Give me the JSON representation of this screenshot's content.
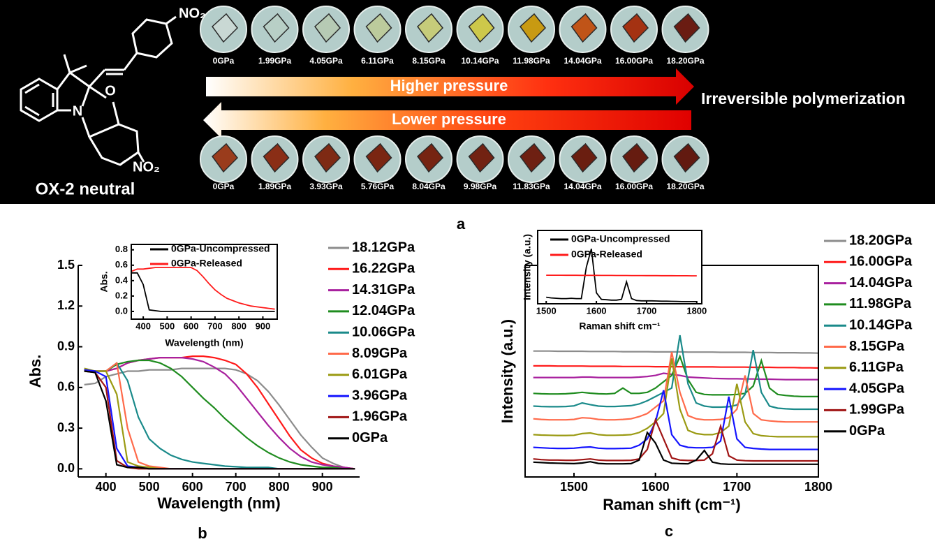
{
  "panel_a": {
    "label": "a",
    "compound": "OX-2 neutral",
    "nitro": "NO₂",
    "atom_n": "N",
    "atom_o": "O",
    "compression": [
      "0GPa",
      "1.99GPa",
      "4.05GPa",
      "6.11GPa",
      "8.15GPa",
      "10.14GPa",
      "11.98GPa",
      "14.04GPa",
      "16.00GPa",
      "18.20GPa"
    ],
    "decompression": [
      "0GPa",
      "1.89GPa",
      "3.93GPa",
      "5.76GPa",
      "8.04GPa",
      "9.98GPa",
      "11.83GPa",
      "14.04GPa",
      "16.00GPa",
      "18.20GPa"
    ],
    "higher": "Higher pressure",
    "lower": "Lower pressure",
    "result": "Irreversible polymerization"
  },
  "chart_data": [
    {
      "type": "line",
      "panel_label": "b",
      "xlabel": "Wavelength (nm)",
      "ylabel": "Abs.",
      "xlim": [
        336,
        986
      ],
      "ylim": [
        -0.06,
        1.5
      ],
      "xticks": [
        400,
        500,
        600,
        700,
        800,
        900
      ],
      "yticks": [
        {
          "value": 0,
          "label": "0.0"
        },
        0.3,
        0.6,
        0.9,
        1.2,
        1.5
      ],
      "x": [
        350,
        375,
        400,
        425,
        450,
        475,
        500,
        525,
        550,
        575,
        600,
        625,
        650,
        675,
        700,
        725,
        750,
        775,
        800,
        825,
        850,
        875,
        900,
        925,
        950,
        975
      ],
      "series": [
        {
          "name": "18.12GPa",
          "color": "#8c8c8c",
          "values": [
            0.62,
            0.63,
            0.68,
            0.7,
            0.72,
            0.72,
            0.73,
            0.73,
            0.73,
            0.74,
            0.74,
            0.74,
            0.74,
            0.74,
            0.73,
            0.7,
            0.65,
            0.57,
            0.47,
            0.36,
            0.25,
            0.16,
            0.08,
            0.04,
            0.01,
            0
          ]
        },
        {
          "name": "16.22GPa",
          "color": "#ff1a1a",
          "values": [
            0.73,
            0.72,
            0.72,
            0.74,
            0.78,
            0.8,
            0.81,
            0.82,
            0.82,
            0.82,
            0.83,
            0.83,
            0.82,
            0.8,
            0.77,
            0.7,
            0.6,
            0.48,
            0.36,
            0.24,
            0.14,
            0.08,
            0.04,
            0.02,
            0.01,
            0
          ]
        },
        {
          "name": "14.31GPa",
          "color": "#a8209e",
          "values": [
            0.73,
            0.72,
            0.72,
            0.74,
            0.78,
            0.8,
            0.81,
            0.82,
            0.82,
            0.82,
            0.81,
            0.79,
            0.75,
            0.7,
            0.62,
            0.52,
            0.42,
            0.32,
            0.23,
            0.15,
            0.09,
            0.05,
            0.03,
            0.02,
            0.01,
            0
          ]
        },
        {
          "name": "12.04GPa",
          "color": "#1f8c1f",
          "values": [
            0.73,
            0.72,
            0.72,
            0.77,
            0.79,
            0.8,
            0.8,
            0.78,
            0.74,
            0.68,
            0.6,
            0.52,
            0.45,
            0.37,
            0.3,
            0.23,
            0.17,
            0.12,
            0.08,
            0.05,
            0.03,
            0.02,
            0.01,
            0.01,
            0,
            0
          ]
        },
        {
          "name": "10.06GPa",
          "color": "#1a8a8a",
          "values": [
            0.72,
            0.72,
            0.72,
            0.78,
            0.65,
            0.38,
            0.22,
            0.15,
            0.1,
            0.07,
            0.05,
            0.04,
            0.03,
            0.02,
            0.015,
            0.01,
            0.01,
            0.01,
            0,
            0,
            0,
            0,
            0,
            0,
            0,
            0
          ]
        },
        {
          "name": "8.09GPa",
          "color": "#ff6a4a",
          "values": [
            0.73,
            0.72,
            0.72,
            0.78,
            0.3,
            0.05,
            0.02,
            0.01,
            0,
            0,
            0,
            0,
            0,
            0,
            0,
            0,
            0,
            0,
            0,
            0,
            0,
            0,
            0,
            0,
            0,
            0
          ]
        },
        {
          "name": "6.01GPa",
          "color": "#9a9a12",
          "values": [
            0.74,
            0.72,
            0.72,
            0.55,
            0.05,
            0.02,
            0.01,
            0,
            0,
            0,
            0,
            0,
            0,
            0,
            0,
            0,
            0,
            0,
            0,
            0,
            0,
            0,
            0,
            0,
            0,
            0
          ]
        },
        {
          "name": "3.96GPa",
          "color": "#1414ff",
          "values": [
            0.73,
            0.72,
            0.68,
            0.15,
            0.02,
            0.01,
            0,
            0,
            0,
            0,
            0,
            0,
            0,
            0,
            0,
            0,
            0,
            0,
            0,
            0,
            0,
            0,
            0,
            0,
            0,
            0
          ]
        },
        {
          "name": "1.96GPa",
          "color": "#a01414",
          "values": [
            0.72,
            0.71,
            0.6,
            0.06,
            0.01,
            0,
            0,
            0,
            0,
            0,
            0,
            0,
            0,
            0,
            0,
            0,
            0,
            0,
            0,
            0,
            0,
            0,
            0,
            0,
            0,
            0
          ]
        },
        {
          "name": "0GPa",
          "color": "#000000",
          "values": [
            0.72,
            0.71,
            0.5,
            0.03,
            0.01,
            0.01,
            0,
            0,
            0,
            0,
            0,
            0,
            0,
            0,
            0,
            0,
            0,
            0,
            0,
            0,
            0,
            0,
            0,
            0,
            0,
            0
          ]
        }
      ]
    },
    {
      "type": "line",
      "xlabel": "Wavelength (nm)",
      "ylabel": "Abs.",
      "xlim": [
        350,
        960
      ],
      "ylim": [
        -0.1,
        0.87
      ],
      "xticks": [
        400,
        500,
        600,
        700,
        800,
        900
      ],
      "yticks": [
        {
          "value": 0,
          "label": "0.0"
        },
        0.2,
        0.4,
        0.6,
        0.8
      ],
      "x": [
        350,
        375,
        400,
        425,
        450,
        475,
        500,
        525,
        550,
        575,
        600,
        625,
        650,
        675,
        700,
        725,
        750,
        775,
        800,
        825,
        850,
        875,
        900,
        925,
        950
      ],
      "series": [
        {
          "name": "0GPa-Uncompressed",
          "color": "#000000",
          "values": [
            0.5,
            0.5,
            0.35,
            0.02,
            0.01,
            0,
            0,
            0,
            0,
            0,
            0,
            0,
            0,
            0,
            0,
            0,
            0,
            0,
            0,
            0,
            0,
            0,
            0,
            0,
            0
          ]
        },
        {
          "name": "0GPa-Released",
          "color": "#ff1a1a",
          "values": [
            0.52,
            0.55,
            0.55,
            0.56,
            0.57,
            0.57,
            0.57,
            0.57,
            0.57,
            0.57,
            0.57,
            0.53,
            0.45,
            0.36,
            0.28,
            0.22,
            0.17,
            0.14,
            0.11,
            0.09,
            0.07,
            0.06,
            0.05,
            0.04,
            0.03
          ]
        }
      ]
    },
    {
      "type": "line",
      "panel_label": "c",
      "xlabel": "Raman shift (cm⁻¹)",
      "ylabel": "Intensity (a.u.)",
      "xlim": [
        1440,
        1800
      ],
      "ylim": [
        0,
        10
      ],
      "xticks": [
        1500,
        1600,
        1700,
        1800
      ],
      "x": [
        1450,
        1460,
        1470,
        1480,
        1490,
        1500,
        1510,
        1520,
        1530,
        1540,
        1550,
        1560,
        1570,
        1580,
        1590,
        1600,
        1610,
        1620,
        1630,
        1640,
        1650,
        1660,
        1670,
        1680,
        1690,
        1700,
        1710,
        1720,
        1730,
        1740,
        1750,
        1760,
        1770,
        1780,
        1790,
        1800
      ],
      "series": [
        {
          "name": "18.20GPa",
          "color": "#8c8c8c",
          "values": [
            5.95,
            5.95,
            5.95,
            5.94,
            5.94,
            5.94,
            5.94,
            5.93,
            5.93,
            5.93,
            5.93,
            5.92,
            5.92,
            5.92,
            5.92,
            5.91,
            5.91,
            5.91,
            5.91,
            5.9,
            5.9,
            5.9,
            5.9,
            5.89,
            5.89,
            5.89,
            5.89,
            5.88,
            5.88,
            5.88,
            5.87,
            5.87,
            5.87,
            5.86,
            5.86,
            5.85
          ]
        },
        {
          "name": "16.00GPa",
          "color": "#ff1a1a",
          "values": [
            5.25,
            5.25,
            5.25,
            5.24,
            5.24,
            5.24,
            5.24,
            5.23,
            5.23,
            5.23,
            5.23,
            5.22,
            5.22,
            5.22,
            5.22,
            5.21,
            5.21,
            5.21,
            5.21,
            5.2,
            5.2,
            5.2,
            5.2,
            5.19,
            5.19,
            5.19,
            5.19,
            5.18,
            5.18,
            5.18,
            5.17,
            5.17,
            5.17,
            5.16,
            5.16,
            5.15
          ]
        },
        {
          "name": "14.04GPa",
          "color": "#a8209e",
          "values": [
            4.7,
            4.7,
            4.7,
            4.7,
            4.7,
            4.7,
            4.72,
            4.72,
            4.7,
            4.7,
            4.7,
            4.7,
            4.7,
            4.72,
            4.75,
            4.8,
            4.9,
            4.85,
            4.8,
            4.72,
            4.7,
            4.68,
            4.66,
            4.65,
            4.64,
            4.64,
            4.63,
            4.63,
            4.62,
            4.62,
            4.61,
            4.6,
            4.6,
            4.6,
            4.6,
            4.6
          ]
        },
        {
          "name": "11.98GPa",
          "color": "#1f8c1f",
          "values": [
            3.95,
            3.93,
            3.92,
            3.92,
            3.93,
            3.96,
            4,
            3.96,
            3.93,
            3.92,
            3.95,
            4.2,
            3.95,
            3.95,
            4,
            4.2,
            4.5,
            4.8,
            5.7,
            4.6,
            4,
            3.9,
            3.88,
            3.88,
            3.88,
            3.9,
            3.95,
            4.3,
            5.5,
            4.2,
            3.9,
            3.85,
            3.82,
            3.8,
            3.8,
            3.8
          ]
        },
        {
          "name": "10.14GPa",
          "color": "#1a8a8a",
          "values": [
            3.35,
            3.33,
            3.32,
            3.32,
            3.33,
            3.36,
            3.5,
            3.42,
            3.35,
            3.33,
            3.33,
            3.35,
            3.37,
            3.45,
            3.6,
            3.8,
            4,
            4.2,
            6.7,
            4.4,
            3.5,
            3.35,
            3.3,
            3.3,
            3.32,
            3.4,
            3.9,
            6,
            4,
            3.35,
            3.25,
            3.22,
            3.2,
            3.2,
            3.2,
            3.2
          ]
        },
        {
          "name": "8.15GPa",
          "color": "#ff6a4a",
          "values": [
            2.75,
            2.72,
            2.7,
            2.7,
            2.7,
            2.72,
            2.8,
            2.78,
            2.72,
            2.7,
            2.7,
            2.72,
            2.75,
            2.85,
            3,
            3.3,
            3.6,
            5.9,
            4,
            2.9,
            2.75,
            2.7,
            2.7,
            2.72,
            2.8,
            3.2,
            4.8,
            3,
            2.7,
            2.65,
            2.62,
            2.6,
            2.6,
            2.6,
            2.6,
            2.6
          ]
        },
        {
          "name": "6.11GPa",
          "color": "#9a9a12",
          "values": [
            2,
            1.98,
            1.97,
            1.96,
            1.96,
            1.97,
            2.05,
            2.08,
            2,
            1.97,
            1.97,
            1.98,
            2,
            2.1,
            2.3,
            2.6,
            3,
            5.6,
            3.2,
            2.2,
            2.05,
            2,
            2,
            2.1,
            2.4,
            4.4,
            2.6,
            2.05,
            1.95,
            1.92,
            1.9,
            1.9,
            1.9,
            1.9,
            1.9,
            1.9
          ]
        },
        {
          "name": "4.05GPa",
          "color": "#1414ff",
          "values": [
            1.4,
            1.38,
            1.36,
            1.35,
            1.35,
            1.36,
            1.4,
            1.42,
            1.36,
            1.34,
            1.34,
            1.35,
            1.36,
            1.5,
            1.8,
            2.6,
            4.1,
            2,
            1.5,
            1.4,
            1.38,
            1.38,
            1.4,
            1.7,
            3.8,
            1.8,
            1.4,
            1.35,
            1.32,
            1.3,
            1.3,
            1.3,
            1.3,
            1.3,
            1.3,
            1.3
          ]
        },
        {
          "name": "1.99GPa",
          "color": "#a01414",
          "values": [
            0.85,
            0.82,
            0.8,
            0.8,
            0.79,
            0.79,
            0.82,
            0.85,
            0.8,
            0.78,
            0.78,
            0.78,
            0.79,
            0.85,
            1.3,
            2.7,
            1.8,
            0.9,
            0.8,
            0.78,
            0.78,
            0.8,
            1.1,
            2.4,
            1,
            0.8,
            0.77,
            0.76,
            0.76,
            0.76,
            0.76,
            0.76,
            0.76,
            0.76,
            0.76,
            0.76
          ]
        },
        {
          "name": "0GPa",
          "color": "#000000",
          "values": [
            0.7,
            0.68,
            0.66,
            0.65,
            0.64,
            0.63,
            0.66,
            0.72,
            0.64,
            0.62,
            0.62,
            0.62,
            0.63,
            0.8,
            2.1,
            1.6,
            0.8,
            0.65,
            0.63,
            0.62,
            0.8,
            1.25,
            0.7,
            0.62,
            0.6,
            0.6,
            0.6,
            0.6,
            0.6,
            0.6,
            0.6,
            0.6,
            0.6,
            0.6,
            0.6,
            0.6
          ]
        }
      ]
    },
    {
      "type": "line",
      "xlabel": "Raman shift cm⁻¹",
      "ylabel": "Intensity (a.u.)",
      "xlim": [
        1483,
        1810
      ],
      "ylim": [
        0,
        10
      ],
      "xticks": [
        1500,
        1600,
        1700,
        1800
      ],
      "x": [
        1500,
        1510,
        1520,
        1530,
        1540,
        1550,
        1560,
        1570,
        1580,
        1590,
        1600,
        1610,
        1620,
        1630,
        1640,
        1650,
        1660,
        1670,
        1680,
        1690,
        1700,
        1710,
        1720,
        1730,
        1740,
        1750,
        1760,
        1770,
        1780,
        1790,
        1800
      ],
      "series": [
        {
          "name": "0GPa-Uncompressed",
          "color": "#000000",
          "values": [
            0.9,
            0.8,
            0.75,
            0.7,
            0.7,
            0.75,
            0.7,
            0.7,
            5,
            7.5,
            1.5,
            0.6,
            0.55,
            0.5,
            0.5,
            0.6,
            3,
            0.7,
            0.45,
            0.4,
            0.4,
            0.4,
            0.38,
            0.35,
            0.35,
            0.33,
            0.32,
            0.3,
            0.3,
            0.3,
            0.3
          ]
        },
        {
          "name": "0GPa-Released",
          "color": "#ff1a1a",
          "values": [
            3.9,
            3.9,
            3.9,
            3.9,
            3.89,
            3.89,
            3.89,
            3.88,
            3.88,
            3.88,
            3.88,
            3.87,
            3.87,
            3.87,
            3.86,
            3.86,
            3.86,
            3.85,
            3.85,
            3.85,
            3.84,
            3.84,
            3.84,
            3.83,
            3.83,
            3.83,
            3.82,
            3.82,
            3.82,
            3.81,
            3.81
          ]
        }
      ]
    }
  ]
}
